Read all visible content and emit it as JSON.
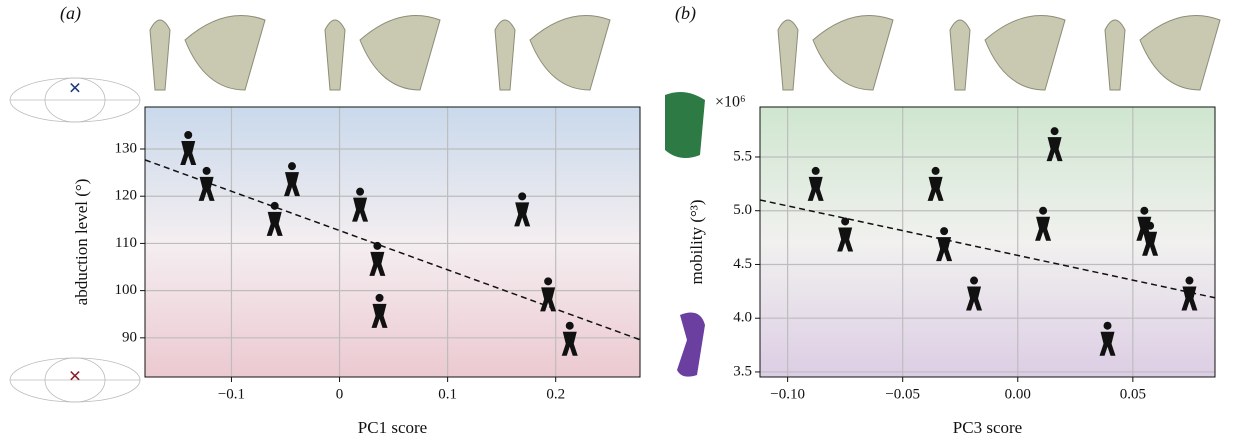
{
  "chart_data": [
    {
      "type": "scatter",
      "label": "(a)",
      "xlabel": "PC1 score",
      "ylabel": "abduction level (°)",
      "x": [
        -0.14,
        -0.123,
        -0.044,
        -0.06,
        0.019,
        0.169,
        0.035,
        0.037,
        0.193,
        0.213
      ],
      "y": [
        130,
        122.4,
        123.4,
        115,
        118,
        117,
        106.5,
        95.5,
        99,
        89.6
      ],
      "color": "#111111",
      "xlim": [
        -0.18,
        0.278
      ],
      "ylim": [
        81.7,
        138.9
      ],
      "xticks": [
        {
          "value": -0.1,
          "label": "−0.1"
        },
        0,
        0.1,
        0.2
      ],
      "yticks": [
        90,
        100,
        110,
        120,
        130
      ],
      "grid": true,
      "trendline": {
        "x": [
          -0.18,
          0.278
        ],
        "y": [
          127.7,
          89.6
        ]
      }
    },
    {
      "type": "scatter",
      "label": "(b)",
      "xlabel": "PC3 score",
      "ylabel": "mobility (°³)",
      "y_offset_label": "×10⁶",
      "x": [
        -0.0878,
        -0.0357,
        0.016,
        0.055,
        0.011,
        -0.075,
        -0.032,
        0.0575,
        -0.019,
        0.0746,
        0.039
      ],
      "y": [
        5.24,
        5.24,
        5.61,
        4.87,
        4.87,
        4.77,
        4.68,
        4.73,
        4.22,
        4.22,
        3.8
      ],
      "color": "#111111",
      "xlim": [
        -0.112,
        0.0857
      ],
      "ylim": [
        3.453,
        5.965
      ],
      "xticks": [
        {
          "value": -0.1,
          "label": "−0.10"
        },
        {
          "value": -0.05,
          "label": "−0.05"
        },
        {
          "value": 0,
          "label": "0.00"
        },
        0.05
      ],
      "yticks": [
        3.5,
        {
          "value": 4,
          "label": "4.0"
        },
        4.5,
        {
          "value": 5,
          "label": "5.0"
        },
        5.5
      ],
      "grid": true,
      "trendline": {
        "x": [
          -0.112,
          0.0857
        ],
        "y": [
          5.1,
          4.19
        ]
      }
    }
  ]
}
